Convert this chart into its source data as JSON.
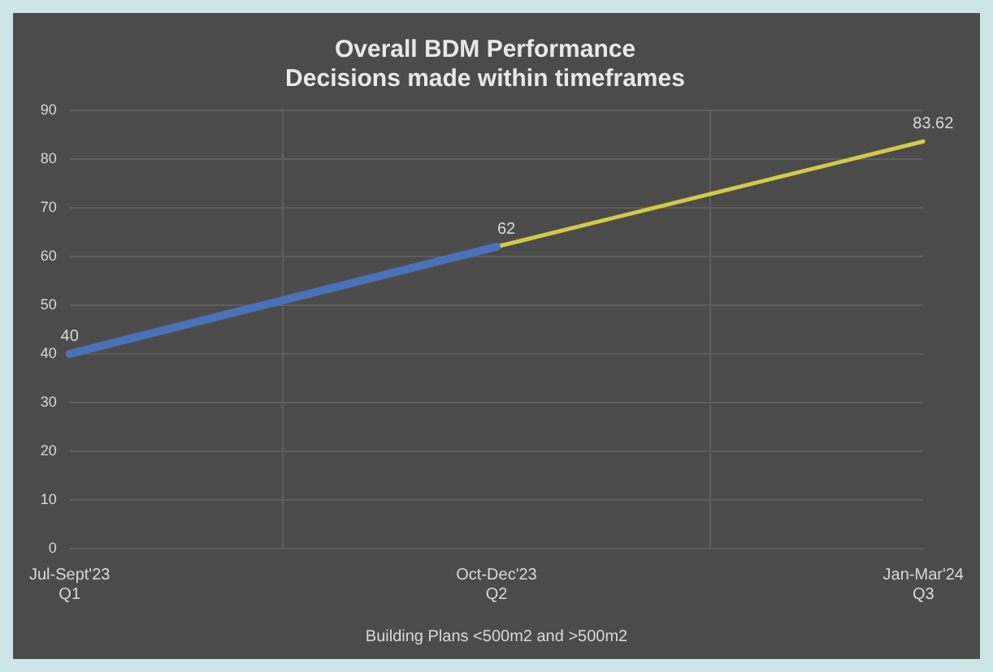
{
  "chart_data": {
    "type": "line",
    "title": "Overall BDM Performance\nDecisions made within timeframes",
    "xlabel": "Building Plans <500m2 and >500m2",
    "categories": [
      "Jul-Sept'23\nQ1",
      "Oct-Dec'23\nQ2",
      "Jan-Mar'24\nQ3"
    ],
    "series": [
      {
        "color": "#4a72b8",
        "values": [
          40,
          62,
          null
        ],
        "value_labels": [
          "40",
          "62",
          null
        ]
      },
      {
        "color": "#d4c84a",
        "values": [
          null,
          62,
          83.62
        ],
        "value_labels": [
          null,
          null,
          "83.62"
        ]
      }
    ],
    "ylim": [
      0,
      90
    ],
    "yticks": [
      0,
      10,
      20,
      30,
      40,
      50,
      60,
      70,
      80,
      90
    ],
    "grid": true,
    "legend": false,
    "marker": "none"
  }
}
